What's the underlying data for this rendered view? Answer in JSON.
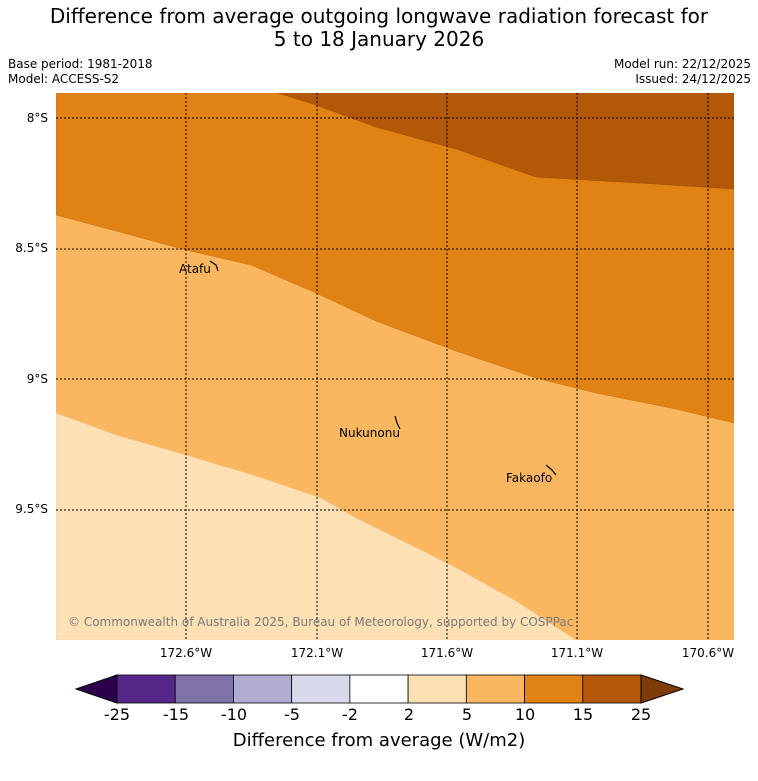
{
  "title_line1": "Difference from average outgoing longwave radiation forecast for",
  "title_line2": "5 to 18 January 2026",
  "meta": {
    "base_period": "Base period: 1981-2018",
    "model": "Model: ACCESS-S2",
    "model_run": "Model run: 22/12/2025",
    "issued": "Issued: 24/12/2025"
  },
  "map": {
    "lat_labels": [
      "8°S",
      "8.5°S",
      "9°S",
      "9.5°S"
    ],
    "lon_labels": [
      "172.6°W",
      "172.1°W",
      "171.6°W",
      "171.1°W",
      "170.6°W"
    ],
    "places": [
      {
        "name": "Atafu"
      },
      {
        "name": "Nukunonu"
      },
      {
        "name": "Fakaofo"
      }
    ],
    "copyright": "© Commonwealth of Australia 2025, Bureau of Meteorology, supported by COSPPac",
    "colors": {
      "c2_5": "#fde0b4",
      "c5_10": "#fbb760",
      "c10_15": "#e08214",
      "c15_25": "#b35806"
    }
  },
  "colorbar": {
    "ticks": [
      "-25",
      "-15",
      "-10",
      "-5",
      "-2",
      "2",
      "5",
      "10",
      "15",
      "25"
    ],
    "colors": [
      "#2d004b",
      "#542788",
      "#8073ac",
      "#b2abd2",
      "#d8daeb",
      "#ffffff",
      "#fde0b4",
      "#fbb760",
      "#e08214",
      "#b35806",
      "#7f3b08"
    ],
    "label": "Difference from average (W/m2)"
  }
}
